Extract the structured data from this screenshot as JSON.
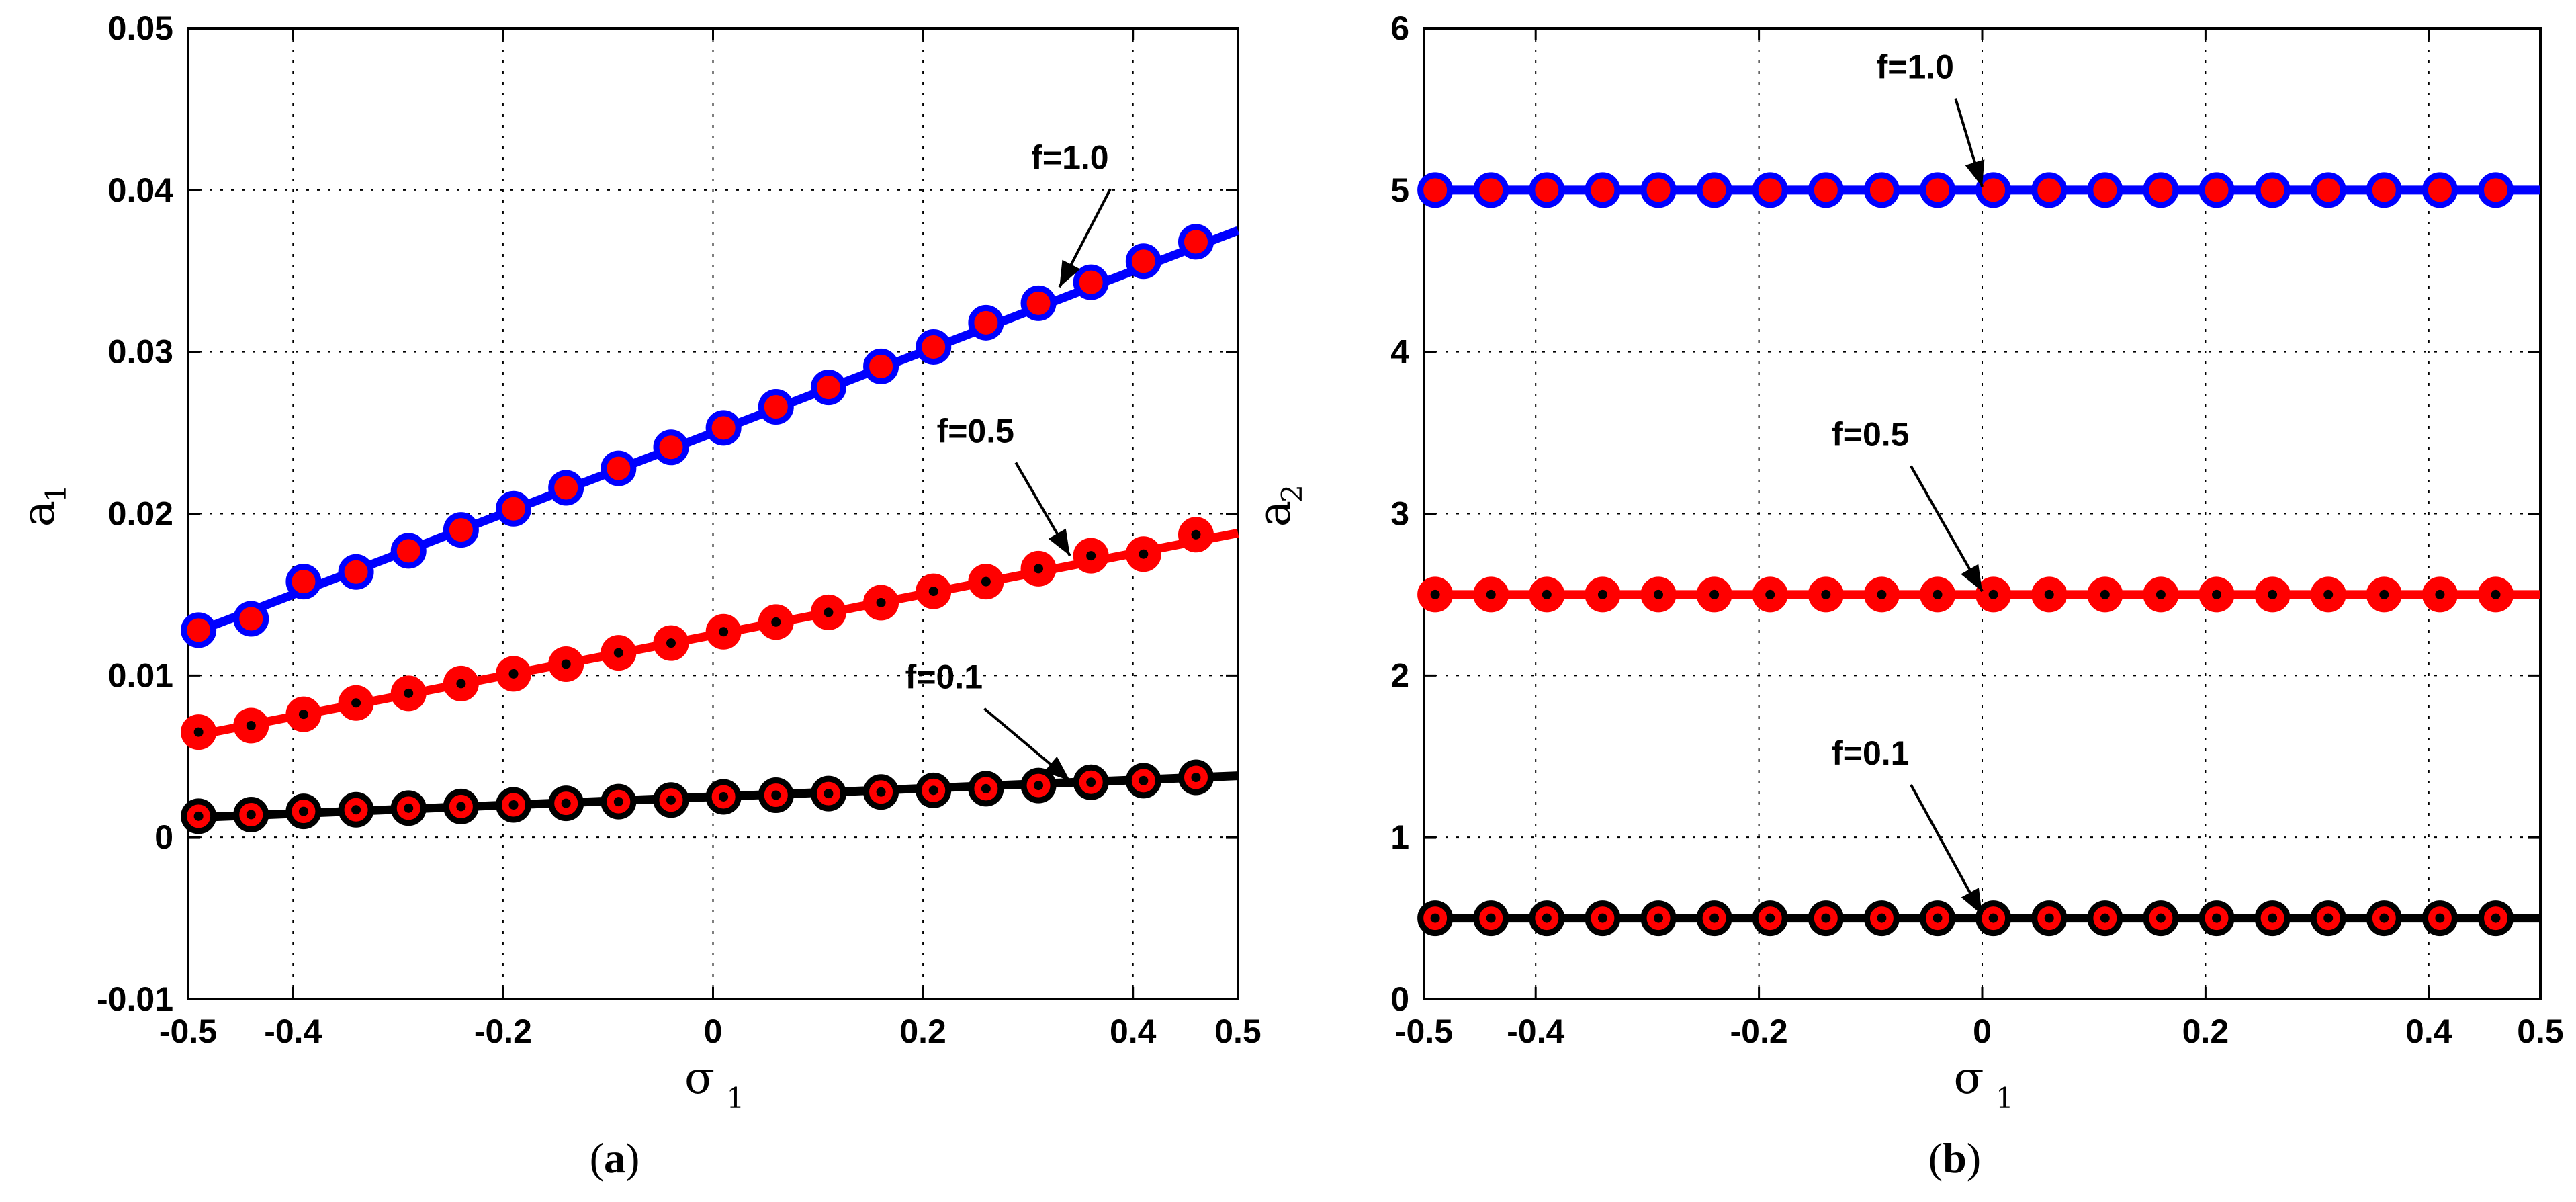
{
  "chart_data": [
    {
      "id": "a",
      "type": "line",
      "caption": "(a)",
      "caption_letter": "a",
      "xlabel": "σ",
      "xlabel_sub": "1",
      "ylabel": "a",
      "ylabel_sub": "1",
      "xlim": [
        -0.5,
        0.5
      ],
      "ylim": [
        -0.01,
        0.05
      ],
      "xticks": [
        -0.5,
        -0.4,
        -0.2,
        0,
        0.2,
        0.4,
        0.5
      ],
      "xtick_labels": [
        "-0.5",
        "-0.4",
        "-0.2",
        "0",
        "0.2",
        "0.4",
        "0.5"
      ],
      "yticks": [
        -0.01,
        0,
        0.01,
        0.02,
        0.03,
        0.04,
        0.05
      ],
      "ytick_labels": [
        "-0.01",
        "0",
        "0.01",
        "0.02",
        "0.03",
        "0.04",
        "0.05"
      ],
      "grid": true,
      "marker_x": [
        -0.49,
        -0.44,
        -0.39,
        -0.34,
        -0.29,
        -0.24,
        -0.19,
        -0.14,
        -0.09,
        -0.04,
        0.01,
        0.06,
        0.11,
        0.16,
        0.21,
        0.26,
        0.31,
        0.36,
        0.41,
        0.46
      ],
      "series": [
        {
          "name": "f=1.0",
          "line_color": "#0000ff",
          "marker_fill": "#ff0000",
          "marker_edge": "#0000ff",
          "center_dot": false,
          "line": [
            [
              -0.5,
              0.0125
            ],
            [
              0.5,
              0.0375
            ]
          ],
          "marker_y": [
            0.0128,
            0.0135,
            0.0158,
            0.0164,
            0.0177,
            0.019,
            0.0203,
            0.0216,
            0.0228,
            0.0241,
            0.0253,
            0.0266,
            0.0278,
            0.0291,
            0.0303,
            0.0318,
            0.033,
            0.0343,
            0.0356,
            0.0368
          ]
        },
        {
          "name": "f=0.5",
          "line_color": "#ff0000",
          "marker_fill": "#ff0000",
          "marker_edge": "#ff0000",
          "center_dot": true,
          "line": [
            [
              -0.5,
              0.0062
            ],
            [
              0.5,
              0.0188
            ]
          ],
          "marker_y": [
            0.0065,
            0.0069,
            0.0076,
            0.0083,
            0.0089,
            0.0095,
            0.0101,
            0.0107,
            0.0114,
            0.012,
            0.0127,
            0.0133,
            0.0139,
            0.0145,
            0.0152,
            0.0158,
            0.0166,
            0.0174,
            0.0175,
            0.0187
          ]
        },
        {
          "name": "f=0.1",
          "line_color": "#000000",
          "marker_fill": "#ff0000",
          "marker_edge": "#000000",
          "center_dot": true,
          "line": [
            [
              -0.5,
              0.0012
            ],
            [
              0.5,
              0.0038
            ]
          ],
          "marker_y": [
            0.0013,
            0.0014,
            0.0016,
            0.0017,
            0.0018,
            0.0019,
            0.002,
            0.0021,
            0.0022,
            0.0023,
            0.0025,
            0.0026,
            0.0027,
            0.0028,
            0.0029,
            0.003,
            0.0032,
            0.0034,
            0.0035,
            0.0037
          ]
        }
      ],
      "annotations": [
        {
          "text": "f=1.0",
          "x": 0.34,
          "y": 0.0413,
          "arrow_to": [
            0.33,
            0.034
          ]
        },
        {
          "text": "f=0.5",
          "x": 0.25,
          "y": 0.0244,
          "arrow_to": [
            0.34,
            0.0174
          ]
        },
        {
          "text": "f=0.1",
          "x": 0.22,
          "y": 0.0092,
          "arrow_to": [
            0.34,
            0.0035
          ]
        }
      ]
    },
    {
      "id": "b",
      "type": "line",
      "caption": "(b)",
      "caption_letter": "b",
      "xlabel": "σ",
      "xlabel_sub": "1",
      "ylabel": "a",
      "ylabel_sub": "2",
      "xlim": [
        -0.5,
        0.5
      ],
      "ylim": [
        0,
        6
      ],
      "xticks": [
        -0.5,
        -0.4,
        -0.2,
        0,
        0.2,
        0.4,
        0.5
      ],
      "xtick_labels": [
        "-0.5",
        "-0.4",
        "-0.2",
        "0",
        "0.2",
        "0.4",
        "0.5"
      ],
      "yticks": [
        0,
        1,
        2,
        3,
        4,
        5,
        6
      ],
      "ytick_labels": [
        "0",
        "1",
        "2",
        "3",
        "4",
        "5",
        "6"
      ],
      "grid": true,
      "marker_x": [
        -0.49,
        -0.44,
        -0.39,
        -0.34,
        -0.29,
        -0.24,
        -0.19,
        -0.14,
        -0.09,
        -0.04,
        0.01,
        0.06,
        0.11,
        0.16,
        0.21,
        0.26,
        0.31,
        0.36,
        0.41,
        0.46
      ],
      "series": [
        {
          "name": "f=1.0",
          "line_color": "#0000ff",
          "marker_fill": "#ff0000",
          "marker_edge": "#0000ff",
          "center_dot": false,
          "line": [
            [
              -0.5,
              5.0
            ],
            [
              0.5,
              5.0
            ]
          ],
          "marker_y": [
            5,
            5,
            5,
            5,
            5,
            5,
            5,
            5,
            5,
            5,
            5,
            5,
            5,
            5,
            5,
            5,
            5,
            5,
            5,
            5
          ]
        },
        {
          "name": "f=0.5",
          "line_color": "#ff0000",
          "marker_fill": "#ff0000",
          "marker_edge": "#ff0000",
          "center_dot": true,
          "line": [
            [
              -0.5,
              2.5
            ],
            [
              0.5,
              2.5
            ]
          ],
          "marker_y": [
            2.5,
            2.5,
            2.5,
            2.5,
            2.5,
            2.5,
            2.5,
            2.5,
            2.5,
            2.5,
            2.5,
            2.5,
            2.5,
            2.5,
            2.5,
            2.5,
            2.5,
            2.5,
            2.5,
            2.5
          ]
        },
        {
          "name": "f=0.1",
          "line_color": "#000000",
          "marker_fill": "#ff0000",
          "marker_edge": "#000000",
          "center_dot": true,
          "line": [
            [
              -0.5,
              0.5
            ],
            [
              0.5,
              0.5
            ]
          ],
          "marker_y": [
            0.5,
            0.5,
            0.5,
            0.5,
            0.5,
            0.5,
            0.5,
            0.5,
            0.5,
            0.5,
            0.5,
            0.5,
            0.5,
            0.5,
            0.5,
            0.5,
            0.5,
            0.5,
            0.5,
            0.5
          ]
        }
      ],
      "annotations": [
        {
          "text": "f=1.0",
          "x": -0.06,
          "y": 5.69,
          "arrow_to": [
            0.0,
            5.02
          ]
        },
        {
          "text": "f=0.5",
          "x": -0.1,
          "y": 3.42,
          "arrow_to": [
            0.0,
            2.52
          ]
        },
        {
          "text": "f=0.1",
          "x": -0.1,
          "y": 1.45,
          "arrow_to": [
            0.0,
            0.52
          ]
        }
      ]
    }
  ]
}
